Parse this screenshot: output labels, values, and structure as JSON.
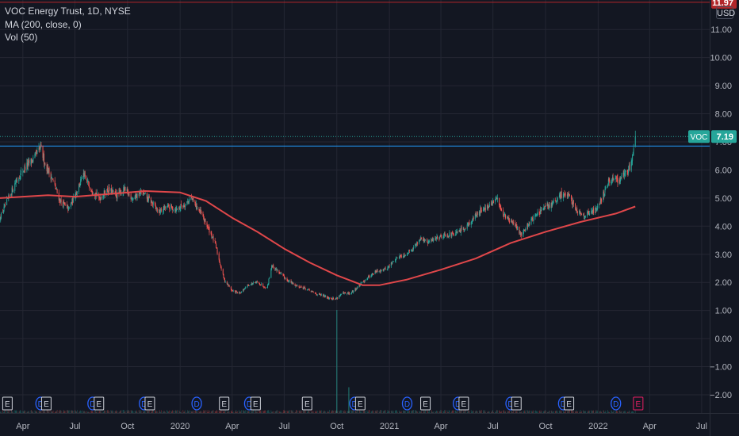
{
  "legend": {
    "title": "VOC Energy Trust, 1D, NYSE",
    "ma": "MA (200, close, 0)",
    "vol": "Vol (50)"
  },
  "currency": "USD",
  "colors": {
    "background": "#131722",
    "grid": "#242733",
    "axis_text": "#b2b5be",
    "up": "#26a69a",
    "down": "#ef5350",
    "ma": "#e0474a",
    "hline_red": "#b2262a",
    "hline_blue": "#2196f3",
    "event_earnings": "#d1d4dc",
    "event_dividend": "#2962ff",
    "event_future": "#e91e63"
  },
  "chart_data": {
    "type": "candlestick",
    "symbol": "VOC",
    "exchange": "NYSE",
    "interval": "1D",
    "ylim": [
      -2.65,
      12.05
    ],
    "y_ticks": [
      11.0,
      10.0,
      9.0,
      8.0,
      7.0,
      6.0,
      5.0,
      4.0,
      3.0,
      2.0,
      1.0,
      0.0,
      -1.0,
      -2.0
    ],
    "y_tick_labels": [
      "11.00",
      "10.00",
      "9.00",
      "8.00",
      "7.00",
      "6.00",
      "5.00",
      "4.00",
      "3.00",
      "2.00",
      "1.00",
      "0.00",
      "−1.00",
      "−2.00"
    ],
    "x_range": [
      "2019-02-20",
      "2022-07-15"
    ],
    "x_ticks": [
      {
        "date": "2019-04-01",
        "label": "Apr"
      },
      {
        "date": "2019-07-01",
        "label": "Jul"
      },
      {
        "date": "2019-10-01",
        "label": "Oct"
      },
      {
        "date": "2020-01-01",
        "label": "2020"
      },
      {
        "date": "2020-04-01",
        "label": "Apr"
      },
      {
        "date": "2020-07-01",
        "label": "Jul"
      },
      {
        "date": "2020-10-01",
        "label": "Oct"
      },
      {
        "date": "2021-01-01",
        "label": "2021"
      },
      {
        "date": "2021-04-01",
        "label": "Apr"
      },
      {
        "date": "2021-07-01",
        "label": "Jul"
      },
      {
        "date": "2021-10-01",
        "label": "Oct"
      },
      {
        "date": "2022-01-01",
        "label": "2022"
      },
      {
        "date": "2022-04-01",
        "label": "Apr"
      },
      {
        "date": "2022-07-01",
        "label": "Jul"
      }
    ],
    "price_path": [
      [
        "2019-02-20",
        4.3
      ],
      [
        "2019-03-05",
        4.9
      ],
      [
        "2019-03-20",
        5.6
      ],
      [
        "2019-04-05",
        6.1
      ],
      [
        "2019-04-20",
        6.4
      ],
      [
        "2019-05-02",
        6.8
      ],
      [
        "2019-05-10",
        6.2
      ],
      [
        "2019-05-22",
        5.7
      ],
      [
        "2019-06-05",
        4.9
      ],
      [
        "2019-06-20",
        4.6
      ],
      [
        "2019-07-05",
        5.3
      ],
      [
        "2019-07-15",
        5.8
      ],
      [
        "2019-07-28",
        5.4
      ],
      [
        "2019-08-12",
        5.0
      ],
      [
        "2019-08-28",
        5.3
      ],
      [
        "2019-09-12",
        5.1
      ],
      [
        "2019-09-25",
        5.3
      ],
      [
        "2019-10-10",
        5.0
      ],
      [
        "2019-10-25",
        5.2
      ],
      [
        "2019-11-10",
        4.9
      ],
      [
        "2019-11-25",
        4.5
      ],
      [
        "2019-12-10",
        4.7
      ],
      [
        "2019-12-25",
        4.6
      ],
      [
        "2020-01-10",
        4.8
      ],
      [
        "2020-01-20",
        5.0
      ],
      [
        "2020-02-05",
        4.5
      ],
      [
        "2020-02-20",
        3.9
      ],
      [
        "2020-03-02",
        3.4
      ],
      [
        "2020-03-09",
        2.8
      ],
      [
        "2020-03-18",
        2.1
      ],
      [
        "2020-04-01",
        1.7
      ],
      [
        "2020-04-15",
        1.6
      ],
      [
        "2020-04-28",
        1.9
      ],
      [
        "2020-05-15",
        2.0
      ],
      [
        "2020-06-01",
        1.8
      ],
      [
        "2020-06-09",
        2.6
      ],
      [
        "2020-06-20",
        2.4
      ],
      [
        "2020-07-05",
        2.1
      ],
      [
        "2020-07-20",
        1.9
      ],
      [
        "2020-08-05",
        1.8
      ],
      [
        "2020-08-25",
        1.6
      ],
      [
        "2020-09-10",
        1.5
      ],
      [
        "2020-09-28",
        1.4
      ],
      [
        "2020-10-10",
        1.6
      ],
      [
        "2020-10-25",
        1.6
      ],
      [
        "2020-11-10",
        1.9
      ],
      [
        "2020-11-25",
        2.2
      ],
      [
        "2020-12-10",
        2.4
      ],
      [
        "2020-12-28",
        2.5
      ],
      [
        "2021-01-15",
        2.9
      ],
      [
        "2021-01-30",
        3.0
      ],
      [
        "2021-02-15",
        3.3
      ],
      [
        "2021-02-25",
        3.6
      ],
      [
        "2021-03-08",
        3.4
      ],
      [
        "2021-03-25",
        3.6
      ],
      [
        "2021-04-10",
        3.7
      ],
      [
        "2021-04-25",
        3.7
      ],
      [
        "2021-05-10",
        3.9
      ],
      [
        "2021-05-25",
        4.2
      ],
      [
        "2021-06-10",
        4.6
      ],
      [
        "2021-06-25",
        4.7
      ],
      [
        "2021-07-08",
        5.0
      ],
      [
        "2021-07-20",
        4.4
      ],
      [
        "2021-08-05",
        4.1
      ],
      [
        "2021-08-20",
        3.7
      ],
      [
        "2021-09-05",
        4.2
      ],
      [
        "2021-09-20",
        4.5
      ],
      [
        "2021-10-05",
        4.7
      ],
      [
        "2021-10-20",
        4.9
      ],
      [
        "2021-11-01",
        5.2
      ],
      [
        "2021-11-12",
        5.0
      ],
      [
        "2021-11-28",
        4.5
      ],
      [
        "2021-12-10",
        4.4
      ],
      [
        "2021-12-28",
        4.6
      ],
      [
        "2022-01-12",
        5.2
      ],
      [
        "2022-01-22",
        5.7
      ],
      [
        "2022-02-05",
        5.6
      ],
      [
        "2022-02-18",
        5.9
      ],
      [
        "2022-02-28",
        6.2
      ],
      [
        "2022-03-04",
        6.9
      ],
      [
        "2022-03-07",
        7.19
      ]
    ],
    "ma_200": [
      [
        "2019-02-20",
        5.0
      ],
      [
        "2019-04-01",
        5.05
      ],
      [
        "2019-05-15",
        5.1
      ],
      [
        "2019-07-01",
        5.05
      ],
      [
        "2019-09-01",
        5.15
      ],
      [
        "2019-11-01",
        5.25
      ],
      [
        "2020-01-01",
        5.2
      ],
      [
        "2020-02-15",
        4.9
      ],
      [
        "2020-04-01",
        4.3
      ],
      [
        "2020-05-15",
        3.8
      ],
      [
        "2020-07-01",
        3.2
      ],
      [
        "2020-08-15",
        2.7
      ],
      [
        "2020-10-01",
        2.25
      ],
      [
        "2020-11-15",
        1.9
      ],
      [
        "2020-12-15",
        1.9
      ],
      [
        "2021-02-01",
        2.1
      ],
      [
        "2021-04-01",
        2.45
      ],
      [
        "2021-06-01",
        2.85
      ],
      [
        "2021-08-01",
        3.4
      ],
      [
        "2021-10-01",
        3.8
      ],
      [
        "2021-12-01",
        4.15
      ],
      [
        "2022-02-01",
        4.45
      ],
      [
        "2022-03-07",
        4.7
      ]
    ],
    "last_price": {
      "symbol": "VOC",
      "value": "7.19",
      "price": 7.19
    },
    "hlines": [
      {
        "price": 11.97,
        "label": "11.97",
        "color": "#b2262a"
      },
      {
        "price": 6.85,
        "color": "#2196f3"
      }
    ],
    "volume_spikes": [
      {
        "date": "2020-10-01",
        "volume": 1.0
      },
      {
        "date": "2020-10-22",
        "volume": 0.25
      }
    ],
    "events": [
      {
        "date": "2019-03-05",
        "type": "E"
      },
      {
        "date": "2019-05-02",
        "type": "D"
      },
      {
        "date": "2019-05-12",
        "type": "E"
      },
      {
        "date": "2019-08-01",
        "type": "D"
      },
      {
        "date": "2019-08-12",
        "type": "E"
      },
      {
        "date": "2019-10-30",
        "type": "D"
      },
      {
        "date": "2019-11-09",
        "type": "E"
      },
      {
        "date": "2020-01-30",
        "type": "D"
      },
      {
        "date": "2020-03-18",
        "type": "E"
      },
      {
        "date": "2020-05-01",
        "type": "D"
      },
      {
        "date": "2020-05-12",
        "type": "E"
      },
      {
        "date": "2020-08-10",
        "type": "E"
      },
      {
        "date": "2020-11-01",
        "type": "D"
      },
      {
        "date": "2020-11-11",
        "type": "E"
      },
      {
        "date": "2021-02-01",
        "type": "D"
      },
      {
        "date": "2021-03-05",
        "type": "E"
      },
      {
        "date": "2021-05-01",
        "type": "D"
      },
      {
        "date": "2021-05-11",
        "type": "E"
      },
      {
        "date": "2021-08-01",
        "type": "D"
      },
      {
        "date": "2021-08-11",
        "type": "E"
      },
      {
        "date": "2021-11-01",
        "type": "D"
      },
      {
        "date": "2021-11-11",
        "type": "E"
      },
      {
        "date": "2022-02-01",
        "type": "D"
      },
      {
        "date": "2022-03-12",
        "type": "E",
        "future": true
      }
    ]
  }
}
